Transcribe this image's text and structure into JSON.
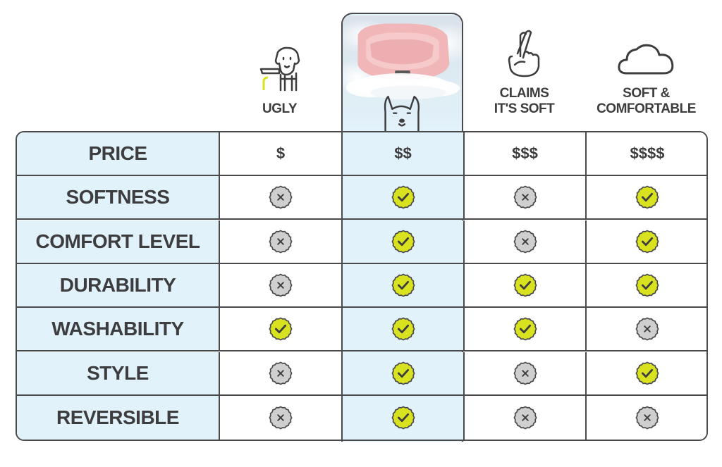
{
  "columns": [
    {
      "label": "UGLY",
      "icon": "dog-on-leash-icon"
    },
    {
      "label": "",
      "icon": "pink-bed-product-photo"
    },
    {
      "label": "CLAIMS\nIT'S SOFT",
      "icon": "crossed-fingers-icon"
    },
    {
      "label": "SOFT &\nCOMFORTABLE",
      "icon": "cloud-icon"
    }
  ],
  "rows": [
    {
      "label": "PRICE",
      "values": [
        "$",
        "$$",
        "$$$",
        "$$$$"
      ]
    },
    {
      "label": "SOFTNESS",
      "values": [
        "no",
        "yes",
        "no",
        "yes"
      ]
    },
    {
      "label": "COMFORT LEVEL",
      "values": [
        "no",
        "yes",
        "no",
        "yes"
      ]
    },
    {
      "label": "DURABILITY",
      "values": [
        "no",
        "yes",
        "yes",
        "yes"
      ]
    },
    {
      "label": "WASHABILITY",
      "values": [
        "yes",
        "yes",
        "yes",
        "no"
      ]
    },
    {
      "label": "STYLE",
      "values": [
        "no",
        "yes",
        "no",
        "yes"
      ]
    },
    {
      "label": "REVERSIBLE",
      "values": [
        "no",
        "yes",
        "no",
        "no"
      ]
    }
  ],
  "colors": {
    "highlight_bg": "#e2f2fa",
    "check_fill": "#d9e21f",
    "cross_fill": "#cfcfcf",
    "border": "#4a4a4c",
    "text": "#3d3d3f"
  }
}
